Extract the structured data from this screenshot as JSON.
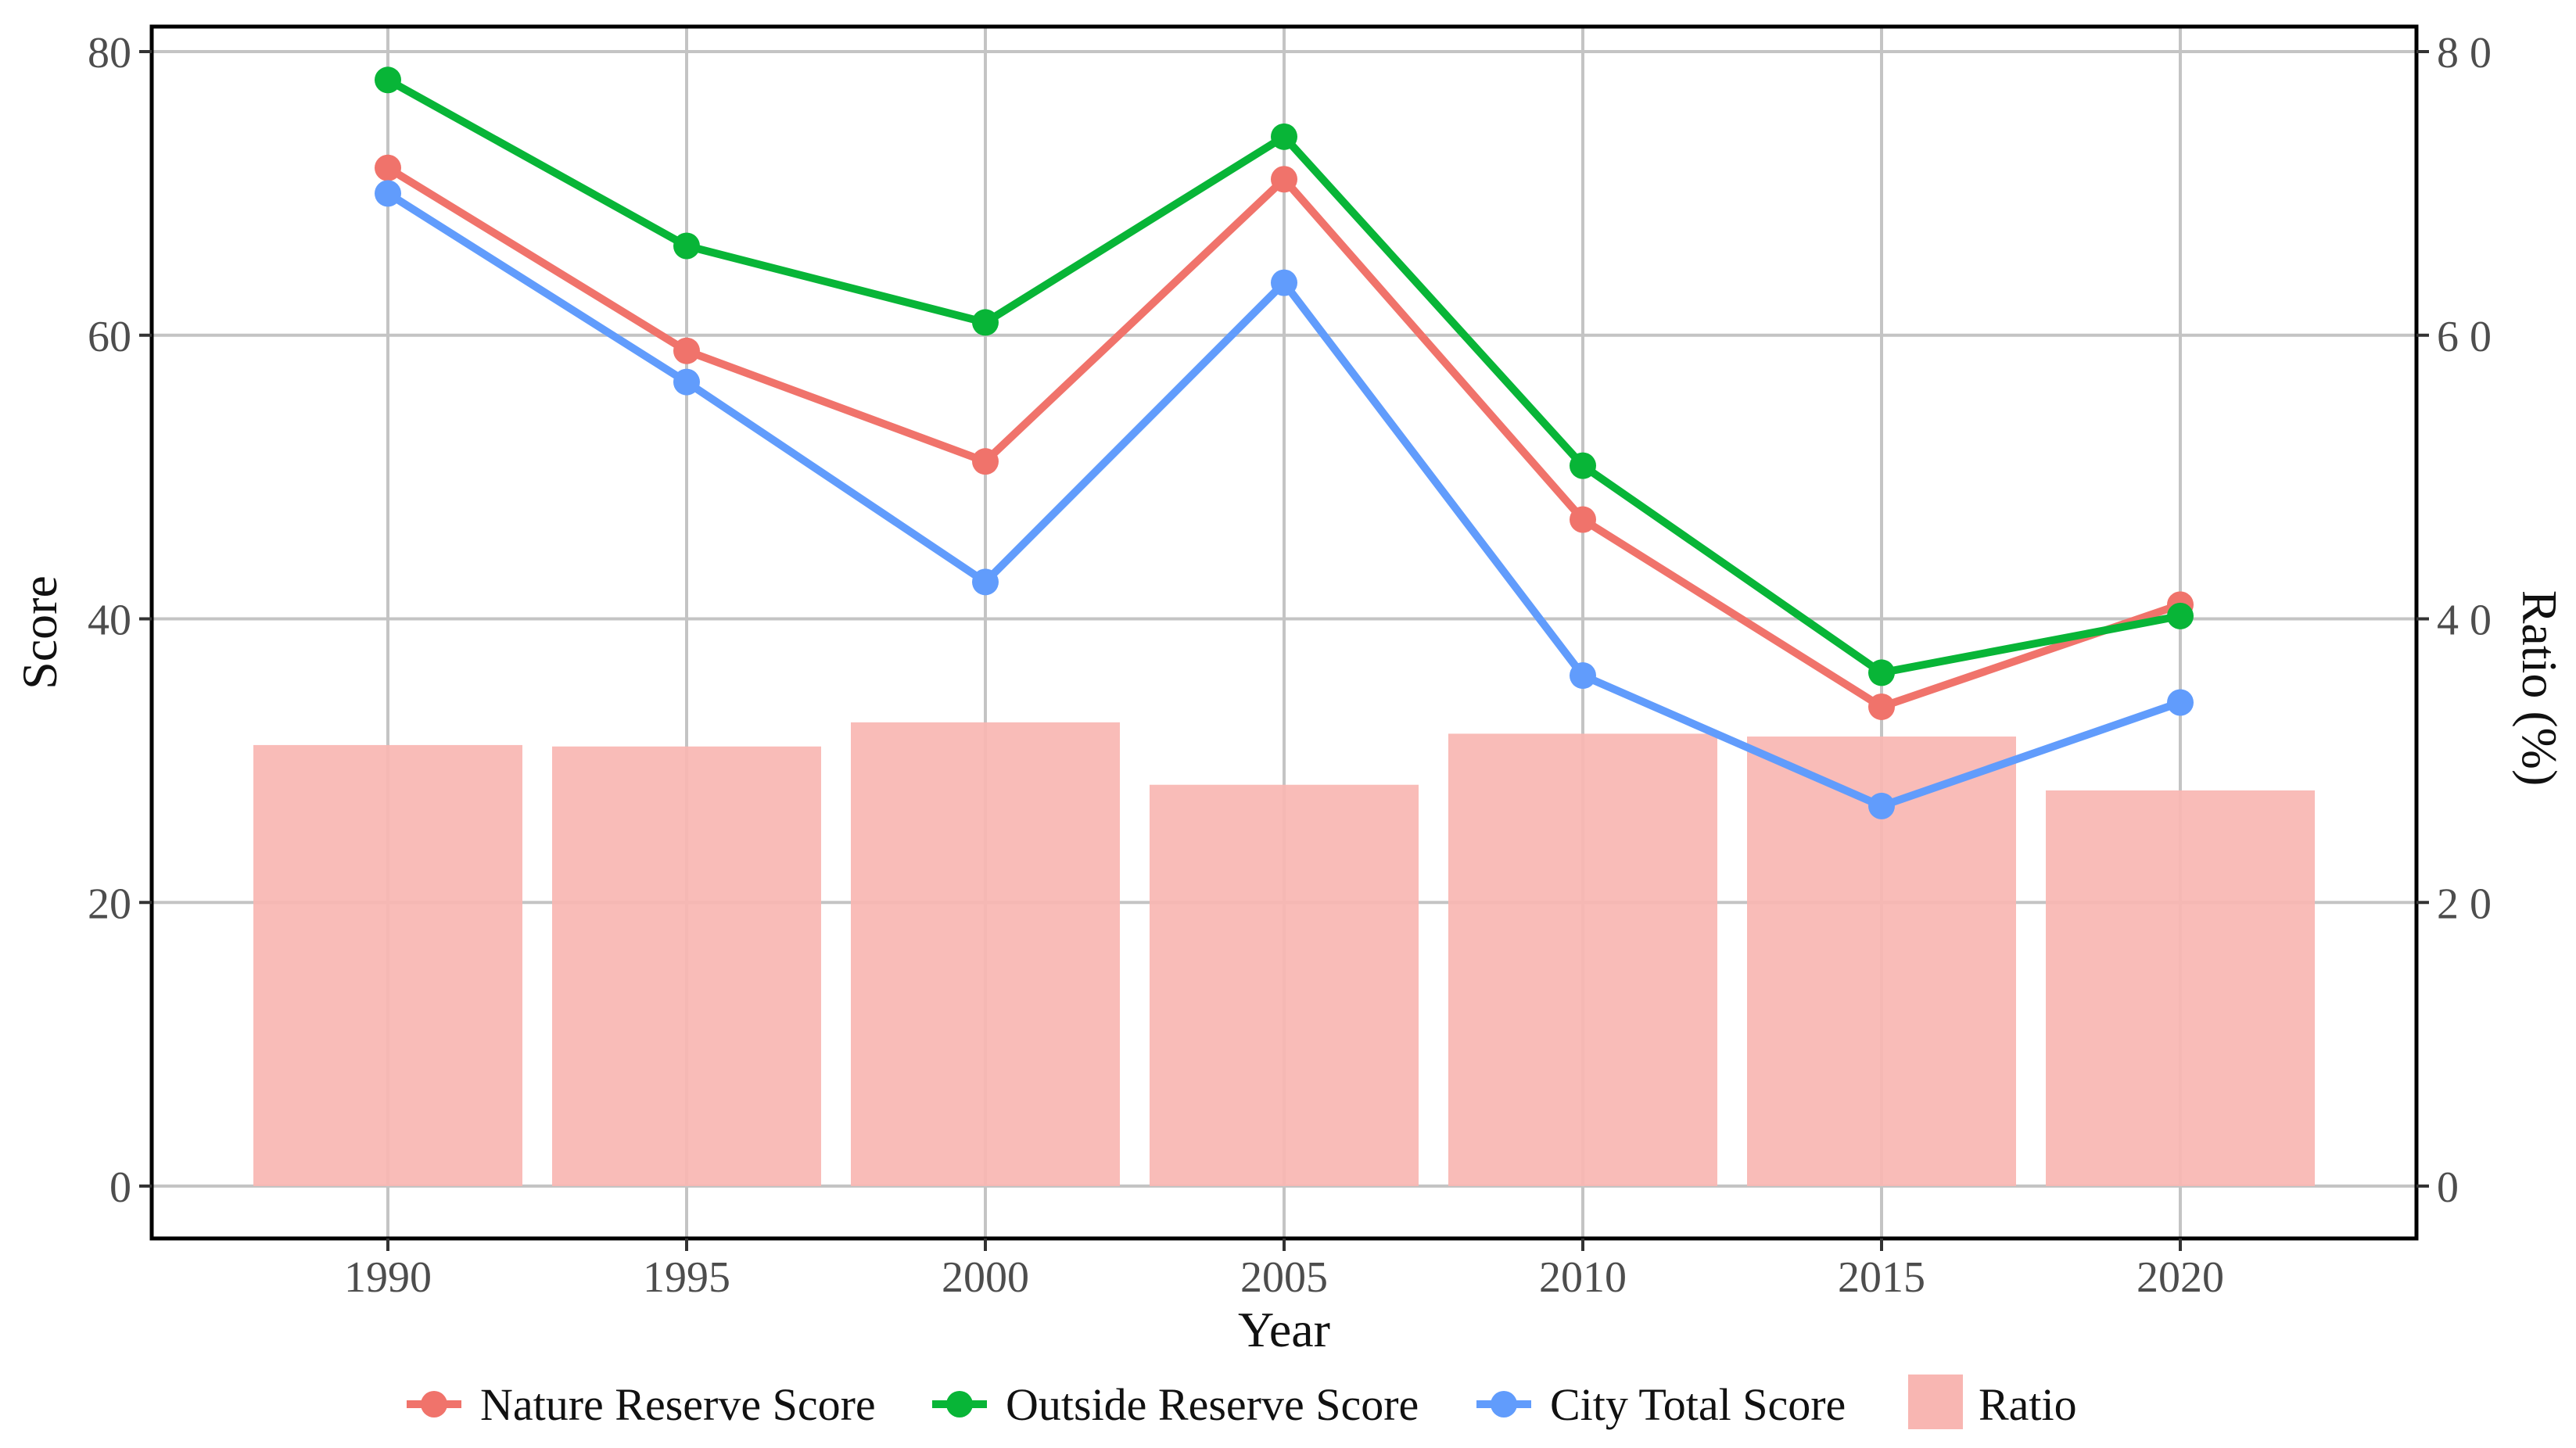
{
  "chart_data": {
    "type": "bar+line",
    "title": "",
    "xlabel": "Year",
    "ylabel": "Score",
    "y2label": "Ratio (%)",
    "categories": [
      "1990",
      "1995",
      "2000",
      "2005",
      "2010",
      "2015",
      "2020"
    ],
    "ylim": [
      0,
      80
    ],
    "y2lim": [
      0,
      80
    ],
    "y_ticks": [
      "0",
      "20",
      "40",
      "60",
      "80"
    ],
    "y2_ticks": [
      "0",
      "2 0",
      "4 0",
      "6 0",
      "8 0"
    ],
    "grid": true,
    "legend_position": "bottom",
    "series": [
      {
        "name": "Nature Reserve Score",
        "kind": "line",
        "color": "#f0736b",
        "values": [
          71.8,
          58.9,
          51.1,
          71.0,
          47.0,
          33.8,
          41.0
        ]
      },
      {
        "name": "Outside Reserve Score",
        "kind": "line",
        "color": "#08b537",
        "values": [
          78.0,
          66.3,
          60.9,
          74.0,
          50.8,
          36.2,
          40.2
        ]
      },
      {
        "name": "City Total Score",
        "kind": "line",
        "color": "#619cfc",
        "values": [
          70.0,
          56.7,
          42.6,
          63.7,
          36.0,
          26.8,
          34.1
        ]
      },
      {
        "name": "Ratio",
        "kind": "bar",
        "color": "#f8b6b2",
        "axis": "right",
        "values": [
          31.1,
          31.0,
          32.7,
          28.3,
          31.9,
          31.7,
          27.9
        ]
      }
    ]
  }
}
